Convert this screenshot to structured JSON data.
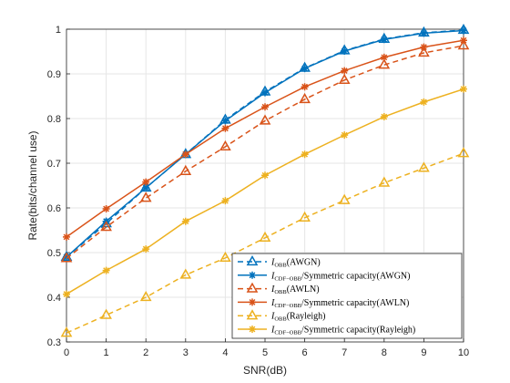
{
  "chart_data": {
    "type": "line",
    "xlabel": "SNR(dB)",
    "ylabel": "Rate(bits/channel use)",
    "xlim": [
      0,
      10
    ],
    "ylim": [
      0.3,
      1
    ],
    "x_ticks": [
      0,
      1,
      2,
      3,
      4,
      5,
      6,
      7,
      8,
      9,
      10
    ],
    "y_ticks": [
      0.3,
      0.4,
      0.5,
      0.6,
      0.7,
      0.8,
      0.9,
      1
    ],
    "grid": true,
    "legend_position": "bottom-right",
    "x": [
      0,
      1,
      2,
      3,
      4,
      5,
      6,
      7,
      8,
      9,
      10
    ],
    "series": [
      {
        "name": "I_OBB(AWGN)",
        "label_main": "I",
        "label_sub": "OBB",
        "label_rest": "(AWGN)",
        "color": "#0072BD",
        "dash": true,
        "marker": "triangle",
        "values": [
          0.49,
          0.565,
          0.645,
          0.72,
          0.797,
          0.86,
          0.913,
          0.952,
          0.978,
          0.992,
          0.998
        ]
      },
      {
        "name": "I_CDF-OBB/Symmetric capacity(AWGN)",
        "label_main": "I",
        "label_sub": "CDF−OBB",
        "label_rest": "/Symmetric capacity(AWGN)",
        "color": "#0072BD",
        "dash": false,
        "marker": "star",
        "values": [
          0.49,
          0.57,
          0.645,
          0.72,
          0.795,
          0.858,
          0.912,
          0.951,
          0.977,
          0.991,
          0.997
        ]
      },
      {
        "name": "I_OBB(AWLN)",
        "label_main": "I",
        "label_sub": "OBB",
        "label_rest": "(AWLN)",
        "color": "#D95319",
        "dash": true,
        "marker": "triangle",
        "values": [
          0.487,
          0.557,
          0.622,
          0.682,
          0.737,
          0.795,
          0.843,
          0.886,
          0.92,
          0.947,
          0.963
        ]
      },
      {
        "name": "I_CDF-OBB/Symmetric capacity(AWLN)",
        "label_main": "I",
        "label_sub": "CDF−OBB",
        "label_rest": "/Symmetric capacity(AWLN)",
        "color": "#D95319",
        "dash": false,
        "marker": "star",
        "values": [
          0.535,
          0.598,
          0.658,
          0.72,
          0.778,
          0.826,
          0.871,
          0.907,
          0.937,
          0.96,
          0.975
        ]
      },
      {
        "name": "I_OBB(Rayleigh)",
        "label_main": "I",
        "label_sub": "OBB",
        "label_rest": "(Rayleigh)",
        "color": "#EDB120",
        "dash": true,
        "marker": "triangle",
        "values": [
          0.32,
          0.36,
          0.4,
          0.45,
          0.488,
          0.533,
          0.578,
          0.617,
          0.656,
          0.689,
          0.722
        ]
      },
      {
        "name": "I_CDF-OBB/Symmetric capacity(Rayleigh)",
        "label_main": "I",
        "label_sub": "CDF−OBB",
        "label_rest": "/Symmetric capacity(Rayleigh)",
        "color": "#EDB120",
        "dash": false,
        "marker": "star",
        "values": [
          0.407,
          0.46,
          0.508,
          0.57,
          0.616,
          0.673,
          0.72,
          0.763,
          0.804,
          0.837,
          0.866
        ]
      }
    ]
  }
}
